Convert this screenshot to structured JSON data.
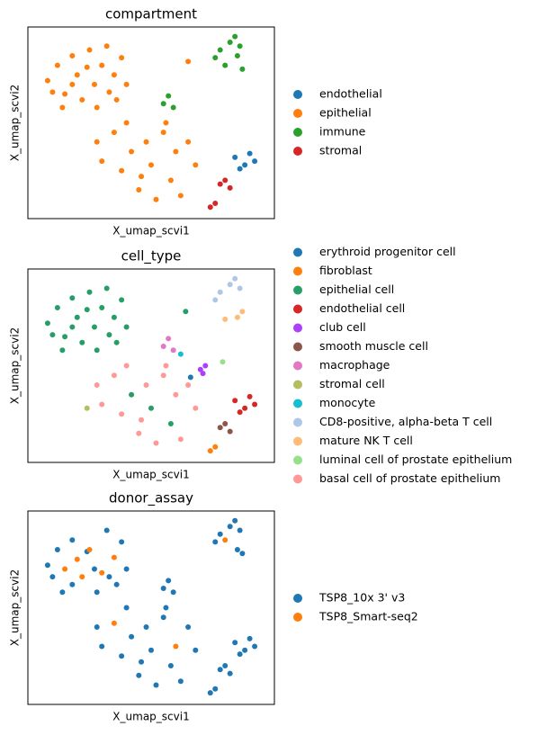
{
  "chart_data": [
    {
      "type": "scatter",
      "title": "compartment",
      "x_label": "X_umap_scvi1",
      "y_label": "X_umap_scvi2",
      "xlim": [
        0,
        100
      ],
      "ylim": [
        0,
        100
      ],
      "series": [
        {
          "name": "endothelial",
          "color": "#1f77b4",
          "x": [
            84,
            88,
            92,
            86,
            90
          ],
          "y": [
            32,
            28,
            30,
            26,
            34
          ]
        },
        {
          "name": "epithelial",
          "color": "#ff7f0e",
          "x": [
            8,
            12,
            15,
            18,
            20,
            22,
            25,
            27,
            30,
            33,
            35,
            38,
            40,
            14,
            28,
            10,
            24,
            32,
            18,
            36,
            28,
            30,
            35,
            38,
            42,
            45,
            48,
            50,
            52,
            55,
            58,
            60,
            62,
            65,
            68,
            40,
            56,
            46,
            65
          ],
          "y": [
            72,
            80,
            65,
            85,
            75,
            62,
            88,
            70,
            80,
            66,
            75,
            84,
            70,
            58,
            58,
            66,
            79,
            90,
            70,
            62,
            40,
            30,
            45,
            25,
            35,
            15,
            40,
            28,
            10,
            45,
            20,
            35,
            12,
            40,
            28,
            50,
            50,
            22,
            82
          ]
        },
        {
          "name": "immune",
          "color": "#2ca02c",
          "x": [
            78,
            82,
            85,
            80,
            87,
            84,
            76,
            86,
            55,
            57,
            59
          ],
          "y": [
            88,
            92,
            85,
            80,
            78,
            95,
            84,
            90,
            60,
            64,
            58
          ]
        },
        {
          "name": "stromal",
          "color": "#d62728",
          "x": [
            78,
            82,
            80,
            74,
            76
          ],
          "y": [
            18,
            16,
            20,
            6,
            8
          ]
        }
      ]
    },
    {
      "type": "scatter",
      "title": "cell_type",
      "x_label": "X_umap_scvi1",
      "y_label": "X_umap_scvi2",
      "xlim": [
        0,
        100
      ],
      "ylim": [
        0,
        100
      ],
      "series": [
        {
          "name": "erythroid progenitor cell",
          "color": "#1f77b4",
          "x": [
            66
          ],
          "y": [
            44
          ]
        },
        {
          "name": "fibroblast",
          "color": "#ff7f0e",
          "x": [
            74,
            76
          ],
          "y": [
            6,
            8
          ]
        },
        {
          "name": "epithelial cell",
          "color": "#279e68",
          "x": [
            8,
            12,
            15,
            18,
            20,
            22,
            25,
            27,
            30,
            33,
            35,
            38,
            40,
            14,
            28,
            10,
            24,
            32,
            18,
            36,
            42,
            50,
            58,
            64
          ],
          "y": [
            72,
            80,
            65,
            85,
            75,
            62,
            88,
            70,
            80,
            66,
            75,
            84,
            70,
            58,
            58,
            66,
            79,
            90,
            70,
            62,
            35,
            28,
            20,
            78
          ]
        },
        {
          "name": "endothelial cell",
          "color": "#d62728",
          "x": [
            84,
            88,
            92,
            86,
            90
          ],
          "y": [
            32,
            28,
            30,
            26,
            34
          ]
        },
        {
          "name": "club cell",
          "color": "#aa40fc",
          "x": [
            70,
            72,
            71
          ],
          "y": [
            48,
            50,
            46
          ]
        },
        {
          "name": "smooth muscle cell",
          "color": "#8c564b",
          "x": [
            78,
            82,
            80
          ],
          "y": [
            18,
            16,
            20
          ]
        },
        {
          "name": "macrophage",
          "color": "#e377c2",
          "x": [
            55,
            57,
            59
          ],
          "y": [
            60,
            64,
            58
          ]
        },
        {
          "name": "stromal cell",
          "color": "#b5bd61",
          "x": [
            24
          ],
          "y": [
            28
          ]
        },
        {
          "name": "monocyte",
          "color": "#17becf",
          "x": [
            62
          ],
          "y": [
            56
          ]
        },
        {
          "name": "CD8-positive, alpha-beta T cell",
          "color": "#aec7e8",
          "x": [
            78,
            82,
            84,
            86,
            76
          ],
          "y": [
            88,
            92,
            95,
            90,
            84
          ]
        },
        {
          "name": "mature NK T cell",
          "color": "#ffbb78",
          "x": [
            85,
            80,
            87
          ],
          "y": [
            75,
            74,
            78
          ]
        },
        {
          "name": "luminal cell of prostate epithelium",
          "color": "#98df8a",
          "x": [
            79
          ],
          "y": [
            52
          ]
        },
        {
          "name": "basal cell of prostate epithelium",
          "color": "#ff9896",
          "x": [
            28,
            30,
            35,
            38,
            45,
            48,
            52,
            55,
            60,
            62,
            65,
            68,
            40,
            56,
            46
          ],
          "y": [
            40,
            30,
            45,
            25,
            15,
            40,
            10,
            45,
            35,
            12,
            40,
            28,
            50,
            50,
            22
          ]
        }
      ]
    },
    {
      "type": "scatter",
      "title": "donor_assay",
      "x_label": "X_umap_scvi1",
      "y_label": "X_umap_scvi2",
      "xlim": [
        0,
        100
      ],
      "ylim": [
        0,
        100
      ],
      "series": [
        {
          "name": "TSP8_10x 3' v3",
          "color": "#1f77b4",
          "x": [
            8,
            12,
            18,
            27,
            33,
            38,
            40,
            14,
            28,
            10,
            24,
            32,
            18,
            36,
            28,
            30,
            38,
            42,
            45,
            48,
            50,
            52,
            55,
            58,
            62,
            65,
            68,
            40,
            56,
            46,
            78,
            82,
            85,
            87,
            84,
            76,
            86,
            55,
            57,
            59,
            84,
            88,
            92,
            86,
            90,
            78,
            82,
            80,
            74,
            76
          ],
          "y": [
            72,
            80,
            85,
            70,
            66,
            84,
            70,
            58,
            58,
            66,
            79,
            90,
            62,
            62,
            40,
            30,
            25,
            35,
            15,
            40,
            28,
            10,
            45,
            20,
            12,
            40,
            28,
            50,
            50,
            22,
            88,
            92,
            80,
            78,
            95,
            84,
            90,
            60,
            64,
            58,
            32,
            28,
            30,
            26,
            34,
            18,
            16,
            20,
            6,
            8
          ]
        },
        {
          "name": "TSP8_Smart-seq2",
          "color": "#ff7f0e",
          "x": [
            20,
            25,
            15,
            30,
            22,
            80,
            35,
            60,
            35
          ],
          "y": [
            75,
            80,
            70,
            68,
            66,
            85,
            42,
            30,
            76
          ]
        }
      ]
    }
  ]
}
